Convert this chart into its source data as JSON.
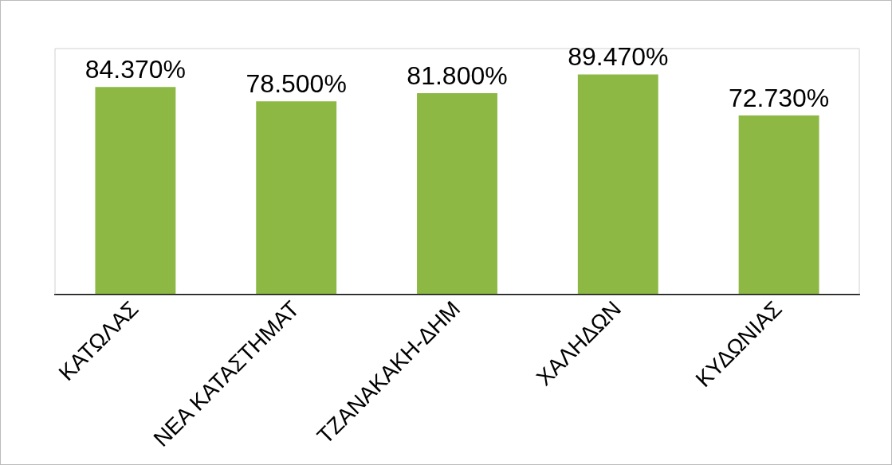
{
  "chart_data": {
    "type": "bar",
    "categories": [
      "ΚΑΤΩΛΑΣ",
      "ΝΕΑ ΚΑΤΑΣΤΗΜΑΤ",
      "ΤΖΑΝΑΚΑΚΗ-ΔΗΜ",
      "ΧΑΛΗΔΩΝ",
      "ΚΥΔΩΝΙΑΣ"
    ],
    "values": [
      84.37,
      78.5,
      81.8,
      89.47,
      72.73
    ],
    "value_labels": [
      "84.370%",
      "78.500%",
      "81.800%",
      "89.470%",
      "72.730%"
    ],
    "color": "#8db844",
    "ylim": [
      0,
      100
    ],
    "tick_labels": "x",
    "grid": false,
    "legend": false
  }
}
